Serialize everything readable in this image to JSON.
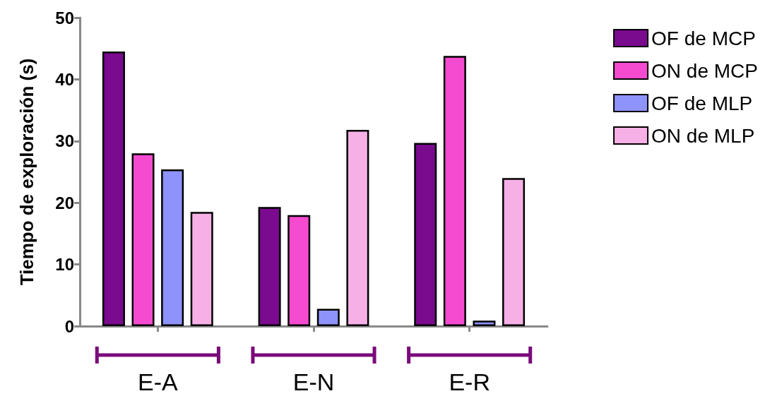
{
  "chart_data": {
    "type": "bar",
    "ylabel": "Tiempo de exploración (s)",
    "categories": [
      "E-A",
      "E-N",
      "E-R"
    ],
    "series": [
      {
        "name": "OF de MCP",
        "color": "#7a0a8e",
        "values": [
          44.5,
          19.3,
          29.7
        ]
      },
      {
        "name": "ON de MCP",
        "color": "#f54bd0",
        "values": [
          28.0,
          18.0,
          43.8
        ]
      },
      {
        "name": "OF de MLP",
        "color": "#8e93fc",
        "values": [
          25.4,
          2.8,
          0.9
        ]
      },
      {
        "name": "ON de MLP",
        "color": "#f6b0e5",
        "values": [
          18.5,
          31.8,
          24.0
        ]
      }
    ],
    "ylim": [
      0,
      50
    ],
    "yticks": [
      0,
      10,
      20,
      30,
      40,
      50
    ],
    "grid": false,
    "legend": "top right"
  }
}
